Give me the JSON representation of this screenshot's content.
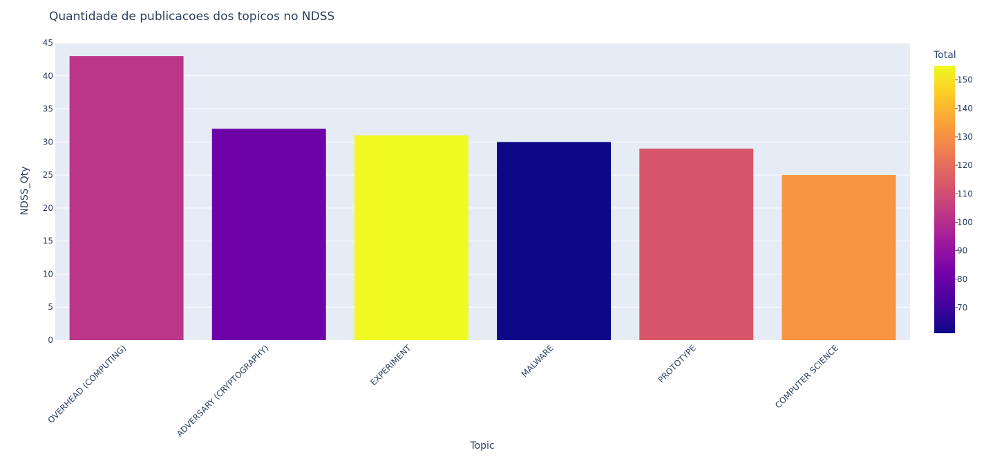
{
  "chart_data": {
    "type": "bar",
    "title": "Quantidade de publicacoes dos topicos no NDSS",
    "xlabel": "Topic",
    "ylabel": "NDSS_Qty",
    "ylim": [
      0,
      45
    ],
    "yticks": [
      0,
      5,
      10,
      15,
      20,
      25,
      30,
      35,
      40,
      45
    ],
    "categories": [
      "OVERHEAD (COMPUTING)",
      "ADVERSARY (CRYPTOGRAPHY)",
      "EXPERIMENT",
      "MALWARE",
      "PROTOTYPE",
      "COMPUTER SCIENCE"
    ],
    "values": [
      43,
      32,
      31,
      30,
      29,
      25
    ],
    "color_values": [
      102,
      81,
      155,
      61,
      113,
      131
    ],
    "colorbar": {
      "title": "Total",
      "range": [
        61,
        155
      ],
      "ticks": [
        70,
        80,
        90,
        100,
        110,
        120,
        130,
        140,
        150
      ],
      "colorscale": [
        "#0d0887",
        "#46039f",
        "#7201a8",
        "#9c179e",
        "#bd3786",
        "#d8576b",
        "#ed7953",
        "#fb9f3a",
        "#fdca26",
        "#f0f921"
      ]
    },
    "grid": true,
    "plot_bgcolor": "#e5ecf6"
  }
}
